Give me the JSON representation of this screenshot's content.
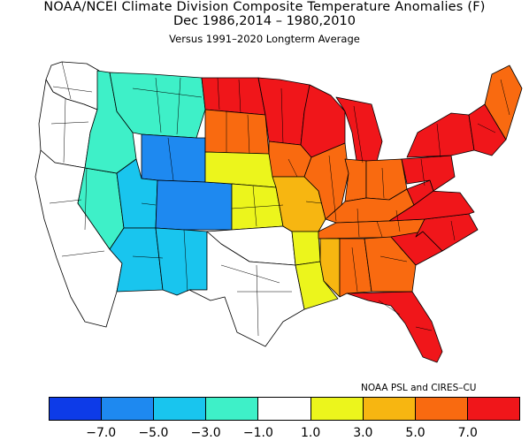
{
  "header": {
    "title": "NOAA/NCEI Climate Division Composite Temperature Anomalies (F)",
    "subtitle": "Dec  1986,2014 – 1980,2010",
    "baseline": "Versus 1991–2020 Longterm Average"
  },
  "credit": "NOAA PSL and CIRES–CU",
  "colors": {
    "bins": [
      "#0d3be8",
      "#1e89f0",
      "#19c5ee",
      "#3ef0c8",
      "#ffffff",
      "#ecf51c",
      "#f7b611",
      "#f96a10",
      "#f0161a"
    ],
    "boundary": "#000000"
  },
  "legend": {
    "ticks": [
      "−7.0",
      "−5.0",
      "−3.0",
      "−1.0",
      "1.0",
      "3.0",
      "5.0",
      "7.0"
    ]
  },
  "map_data": {
    "type": "choropleth",
    "units": "°F anomaly",
    "regions": [
      {
        "name": "washington",
        "bin": 4
      },
      {
        "name": "oregon",
        "bin": 4
      },
      {
        "name": "california",
        "bin": 4
      },
      {
        "name": "nevada",
        "bin": 3
      },
      {
        "name": "idaho",
        "bin": 3
      },
      {
        "name": "montana",
        "bin": 3
      },
      {
        "name": "wyoming",
        "bin": 1
      },
      {
        "name": "utah",
        "bin": 2
      },
      {
        "name": "colorado",
        "bin": 1
      },
      {
        "name": "arizona",
        "bin": 2
      },
      {
        "name": "new-mexico",
        "bin": 2
      },
      {
        "name": "north-dakota",
        "bin": 8
      },
      {
        "name": "south-dakota",
        "bin": 7
      },
      {
        "name": "nebraska",
        "bin": 5
      },
      {
        "name": "kansas",
        "bin": 5
      },
      {
        "name": "oklahoma",
        "bin": 4
      },
      {
        "name": "texas",
        "bin": 4
      },
      {
        "name": "minnesota",
        "bin": 8
      },
      {
        "name": "iowa",
        "bin": 7
      },
      {
        "name": "missouri",
        "bin": 6
      },
      {
        "name": "arkansas",
        "bin": 5
      },
      {
        "name": "louisiana",
        "bin": 5
      },
      {
        "name": "wisconsin",
        "bin": 8
      },
      {
        "name": "michigan",
        "bin": 8
      },
      {
        "name": "illinois",
        "bin": 7
      },
      {
        "name": "indiana",
        "bin": 7
      },
      {
        "name": "ohio",
        "bin": 7
      },
      {
        "name": "kentucky",
        "bin": 7
      },
      {
        "name": "tennessee",
        "bin": 7
      },
      {
        "name": "mississippi",
        "bin": 6
      },
      {
        "name": "alabama",
        "bin": 7
      },
      {
        "name": "georgia",
        "bin": 7
      },
      {
        "name": "florida",
        "bin": 8
      },
      {
        "name": "south-carolina",
        "bin": 8
      },
      {
        "name": "north-carolina",
        "bin": 8
      },
      {
        "name": "virginia",
        "bin": 8
      },
      {
        "name": "west-virginia",
        "bin": 8
      },
      {
        "name": "pennsylvania",
        "bin": 8
      },
      {
        "name": "new-york",
        "bin": 8
      },
      {
        "name": "new-england",
        "bin": 8
      },
      {
        "name": "maine",
        "bin": 7
      }
    ]
  }
}
